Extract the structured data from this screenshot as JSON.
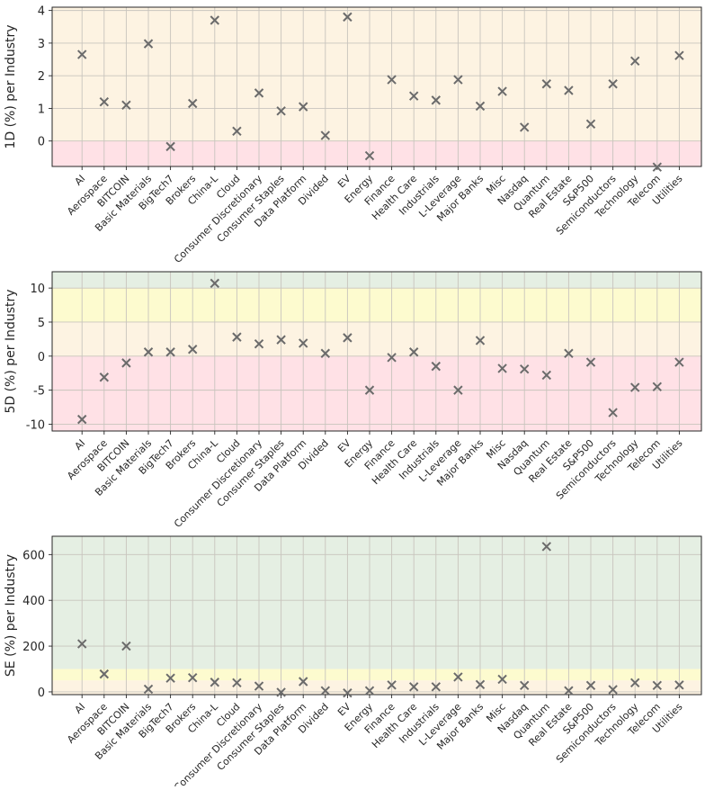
{
  "chart_data": [
    {
      "type": "scatter",
      "ylabel": "1D (%) per Industry",
      "xlabel": "",
      "categories": [
        "AI",
        "Aerospace",
        "BITCOIN",
        "Basic Materials",
        "BigTech7",
        "Brokers",
        "China-L",
        "Cloud",
        "Consumer Discretionary",
        "Consumer Staples",
        "Data Platform",
        "Divided",
        "EV",
        "Energy",
        "Finance",
        "Health Care",
        "Industrials",
        "L-Leverage",
        "Major Banks",
        "Misc",
        "Nasdaq",
        "Quantum",
        "Real Estate",
        "S&P500",
        "Semiconductors",
        "Technology",
        "Telecom",
        "Utilities"
      ],
      "positions": [
        0,
        1,
        2,
        3,
        4,
        5,
        6,
        7,
        8,
        9,
        10,
        11,
        12,
        13,
        14,
        15,
        16,
        17,
        18,
        19,
        20,
        21,
        22,
        23,
        24,
        25,
        26,
        27
      ],
      "values": [
        2.65,
        1.2,
        1.1,
        2.98,
        -0.17,
        1.15,
        3.7,
        0.3,
        1.47,
        0.92,
        1.05,
        0.17,
        3.8,
        -0.45,
        1.88,
        1.38,
        1.25,
        1.88,
        1.07,
        1.52,
        0.42,
        1.75,
        1.55,
        0.52,
        1.75,
        2.45,
        -0.8,
        2.62
      ],
      "ylim": [
        -0.78,
        4.1
      ],
      "yticks": [
        0,
        1,
        2,
        3,
        4
      ],
      "bands": [
        {
          "from": -0.78,
          "to": 0,
          "color": "#ffe1e6"
        },
        {
          "from": 0,
          "to": 4.1,
          "color": "#fdf3e2"
        }
      ],
      "grid": true,
      "marker": "x",
      "marker_color": "#6b6b6b"
    },
    {
      "type": "scatter",
      "ylabel": "5D (%) per Industry",
      "xlabel": "",
      "categories": [
        "AI",
        "Aerospace",
        "BITCOIN",
        "Basic Materials",
        "BigTech7",
        "Brokers",
        "China-L",
        "Cloud",
        "Consumer Discretionary",
        "Consumer Staples",
        "Data Platform",
        "Divided",
        "EV",
        "Energy",
        "Finance",
        "Health Care",
        "Industrials",
        "L-Leverage",
        "Major Banks",
        "Misc",
        "Nasdaq",
        "Quantum",
        "Real Estate",
        "S&P500",
        "Semiconductors",
        "Technology",
        "Telecom",
        "Utilities"
      ],
      "positions": [
        0,
        1,
        2,
        3,
        4,
        5,
        6,
        7,
        8,
        9,
        10,
        11,
        12,
        13,
        14,
        15,
        16,
        17,
        18,
        19,
        20,
        21,
        22,
        23,
        24,
        25,
        26,
        27
      ],
      "values": [
        -9.3,
        -3.1,
        -1.0,
        0.6,
        0.6,
        1.0,
        10.7,
        2.8,
        1.8,
        2.4,
        1.9,
        0.4,
        2.7,
        -5.0,
        -0.2,
        0.6,
        -1.5,
        -5.0,
        2.3,
        -1.8,
        -1.9,
        -2.8,
        0.4,
        -0.9,
        -8.3,
        -4.6,
        -4.5,
        -0.9
      ],
      "ylim": [
        -11,
        12.4
      ],
      "yticks": [
        -10,
        -5,
        0,
        5,
        10
      ],
      "bands": [
        {
          "from": -11,
          "to": 0,
          "color": "#ffe1e6"
        },
        {
          "from": 0,
          "to": 5,
          "color": "#fdf3e2"
        },
        {
          "from": 5,
          "to": 10,
          "color": "#fdfbcf"
        },
        {
          "from": 10,
          "to": 12.4,
          "color": "#e5efe3"
        }
      ],
      "grid": true,
      "marker": "x",
      "marker_color": "#6b6b6b"
    },
    {
      "type": "scatter",
      "ylabel": "SE (%) per Industry",
      "xlabel": "",
      "categories": [
        "AI",
        "Aerospace",
        "BITCOIN",
        "Basic Materials",
        "BigTech7",
        "Brokers",
        "China-L",
        "Cloud",
        "Consumer Discretionary",
        "Consumer Staples",
        "Data Platform",
        "Divided",
        "EV",
        "Energy",
        "Finance",
        "Health Care",
        "Industrials",
        "L-Leverage",
        "Major Banks",
        "Misc",
        "Nasdaq",
        "Quantum",
        "Real Estate",
        "S&P500",
        "Semiconductors",
        "Technology",
        "Telecom",
        "Utilities"
      ],
      "positions": [
        0,
        1,
        2,
        3,
        4,
        5,
        6,
        7,
        8,
        9,
        10,
        11,
        12,
        13,
        14,
        15,
        16,
        17,
        18,
        19,
        20,
        21,
        22,
        23,
        24,
        25,
        26,
        27
      ],
      "values": [
        210,
        78,
        200,
        12,
        60,
        62,
        42,
        40,
        25,
        -2,
        45,
        5,
        -5,
        5,
        30,
        22,
        22,
        65,
        32,
        55,
        28,
        635,
        5,
        28,
        10,
        40,
        28,
        30
      ],
      "ylim": [
        -12,
        680
      ],
      "yticks": [
        0,
        200,
        400,
        600
      ],
      "bands": [
        {
          "from": -12,
          "to": 50,
          "color": "#fdf3e2"
        },
        {
          "from": 50,
          "to": 100,
          "color": "#fdfbcf"
        },
        {
          "from": 100,
          "to": 680,
          "color": "#e5efe3"
        }
      ],
      "grid": true,
      "marker": "x",
      "marker_color": "#6b6b6b"
    }
  ]
}
